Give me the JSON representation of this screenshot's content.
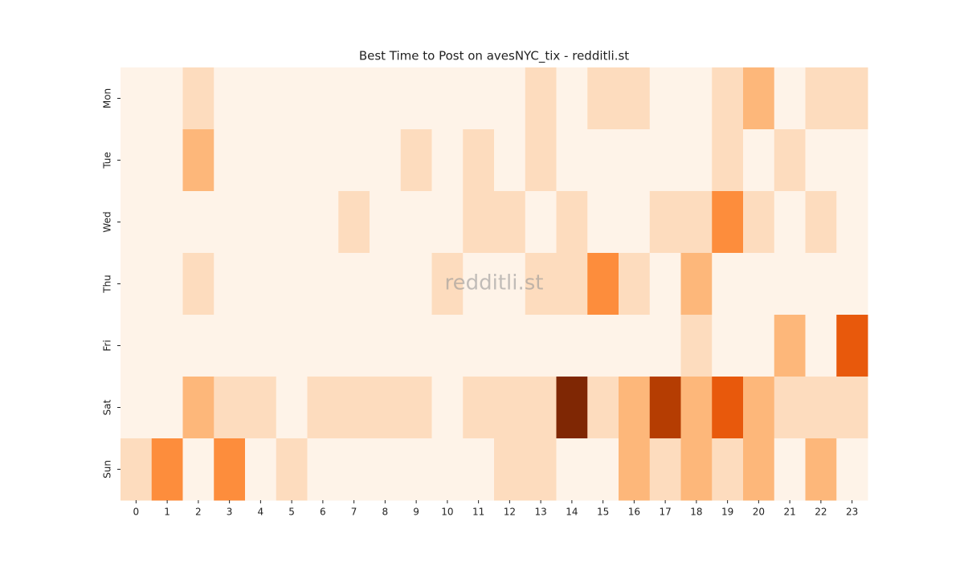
{
  "chart_data": {
    "type": "heatmap",
    "title": "Best Time to Post on avesNYC_tix - redditli.st",
    "watermark": "redditli.st",
    "x": [
      0,
      1,
      2,
      3,
      4,
      5,
      6,
      7,
      8,
      9,
      10,
      11,
      12,
      13,
      14,
      15,
      16,
      17,
      18,
      19,
      20,
      21,
      22,
      23
    ],
    "y": [
      "Mon",
      "Tue",
      "Wed",
      "Thu",
      "Fri",
      "Sat",
      "Sun"
    ],
    "values": [
      [
        0,
        0,
        1,
        0,
        0,
        0,
        0,
        0,
        0,
        0,
        0,
        0,
        0,
        1,
        0,
        1,
        1,
        0,
        0,
        1,
        2,
        0,
        1,
        1
      ],
      [
        0,
        0,
        2,
        0,
        0,
        0,
        0,
        0,
        0,
        1,
        0,
        1,
        0,
        1,
        0,
        0,
        0,
        0,
        0,
        1,
        0,
        1,
        0,
        0
      ],
      [
        0,
        0,
        0,
        0,
        0,
        0,
        0,
        1,
        0,
        0,
        0,
        1,
        1,
        0,
        1,
        0,
        0,
        1,
        1,
        3,
        1,
        0,
        1,
        0
      ],
      [
        0,
        0,
        1,
        0,
        0,
        0,
        0,
        0,
        0,
        0,
        1,
        0,
        0,
        1,
        1,
        3,
        1,
        0,
        2,
        0,
        0,
        0,
        0,
        0
      ],
      [
        0,
        0,
        0,
        0,
        0,
        0,
        0,
        0,
        0,
        0,
        0,
        0,
        0,
        0,
        0,
        0,
        0,
        0,
        1,
        0,
        0,
        2,
        0,
        4
      ],
      [
        0,
        0,
        2,
        1,
        1,
        0,
        1,
        1,
        1,
        1,
        0,
        1,
        1,
        1,
        6,
        1,
        2,
        5,
        2,
        4,
        2,
        1,
        1,
        1
      ],
      [
        1,
        3,
        0,
        3,
        0,
        1,
        0,
        0,
        0,
        0,
        0,
        0,
        1,
        1,
        0,
        0,
        2,
        1,
        2,
        1,
        2,
        0,
        2,
        0
      ]
    ],
    "clim": [
      0,
      6
    ],
    "colorscale": [
      "#fef3e8",
      "#fddcbe",
      "#fdb77a",
      "#fd8d3c",
      "#e8590c",
      "#b53d02",
      "#7f2704"
    ]
  }
}
